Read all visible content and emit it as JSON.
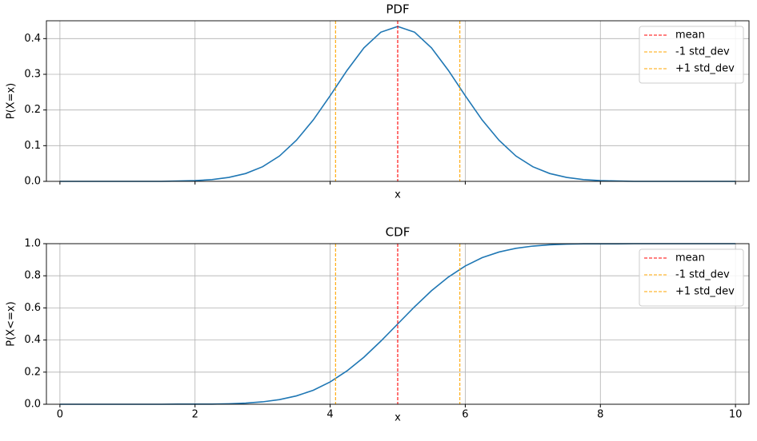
{
  "chart_data": [
    {
      "type": "line",
      "title": "PDF",
      "x_label": "x",
      "y_label": "P(X=x)",
      "x": [
        0,
        0.25,
        0.5,
        0.75,
        1,
        1.25,
        1.5,
        1.75,
        2,
        2.25,
        2.5,
        2.75,
        3,
        3.25,
        3.5,
        3.75,
        4,
        4.25,
        4.5,
        4.75,
        5,
        5.25,
        5.5,
        5.75,
        6,
        6.25,
        6.5,
        6.75,
        7,
        7.25,
        7.5,
        7.75,
        8,
        8.25,
        8.5,
        8.75,
        9,
        9.25,
        9.5,
        9.75,
        10
      ],
      "series": [
        {
          "color": "#1f77b4",
          "values": [
            0,
            0,
            0,
            0,
            0,
            0,
            0,
            0.001,
            0.002,
            0.005,
            0.011,
            0.022,
            0.041,
            0.071,
            0.115,
            0.172,
            0.24,
            0.311,
            0.374,
            0.418,
            0.434,
            0.418,
            0.374,
            0.311,
            0.24,
            0.172,
            0.115,
            0.071,
            0.041,
            0.022,
            0.011,
            0.005,
            0.002,
            0.001,
            0,
            0,
            0,
            0,
            0,
            0,
            0
          ]
        }
      ],
      "vlines": [
        {
          "name": "mean",
          "value": 5,
          "color": "#ff0000"
        },
        {
          "name": "-1 std_dev",
          "value": 4.08,
          "color": "#ffa500"
        },
        {
          "name": "+1 std_dev",
          "value": 5.92,
          "color": "#ffa500"
        }
      ],
      "xlim": [
        -0.2,
        10.2
      ],
      "xticks": [
        0,
        2,
        4,
        6,
        8,
        10
      ],
      "show_xtick_labels": false,
      "ylim": [
        0,
        0.45
      ],
      "yticks": [
        {
          "value": 0,
          "label": "0.0"
        },
        0.1,
        0.2,
        0.3,
        0.4
      ],
      "grid": true,
      "legend": "upper right"
    },
    {
      "type": "line",
      "title": "CDF",
      "x_label": "x",
      "y_label": "P(X<=x)",
      "x": [
        0,
        0.25,
        0.5,
        0.75,
        1,
        1.25,
        1.5,
        1.75,
        2,
        2.25,
        2.5,
        2.75,
        3,
        3.25,
        3.5,
        3.75,
        4,
        4.25,
        4.5,
        4.75,
        5,
        5.25,
        5.5,
        5.75,
        6,
        6.25,
        6.5,
        6.75,
        7,
        7.25,
        7.5,
        7.75,
        8,
        8.25,
        8.5,
        8.75,
        9,
        9.25,
        9.5,
        9.75,
        10
      ],
      "series": [
        {
          "color": "#1f77b4",
          "values": [
            0,
            0,
            0,
            0,
            0,
            0,
            0,
            0.001,
            0.001,
            0.001,
            0.003,
            0.007,
            0.015,
            0.029,
            0.052,
            0.087,
            0.139,
            0.208,
            0.293,
            0.393,
            0.5,
            0.607,
            0.707,
            0.792,
            0.861,
            0.913,
            0.948,
            0.971,
            0.985,
            0.993,
            0.997,
            0.999,
            0.999,
            0.999,
            1,
            1,
            1,
            1,
            1,
            1,
            1
          ]
        }
      ],
      "vlines": [
        {
          "name": "mean",
          "value": 5,
          "color": "#ff0000"
        },
        {
          "name": "-1 std_dev",
          "value": 4.08,
          "color": "#ffa500"
        },
        {
          "name": "+1 std_dev",
          "value": 5.92,
          "color": "#ffa500"
        }
      ],
      "xlim": [
        -0.2,
        10.2
      ],
      "xticks": [
        0,
        2,
        4,
        6,
        8,
        10
      ],
      "show_xtick_labels": true,
      "ylim": [
        0,
        1.0
      ],
      "yticks": [
        {
          "value": 0,
          "label": "0.0"
        },
        0.2,
        0.4,
        0.6,
        0.8,
        {
          "value": 1,
          "label": "1.0"
        }
      ],
      "grid": true,
      "legend": "upper right"
    }
  ]
}
